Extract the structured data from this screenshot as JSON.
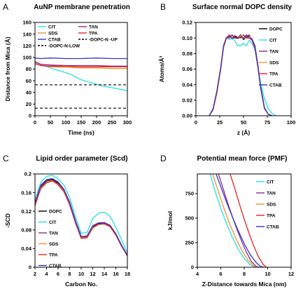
{
  "chart_data": [
    {
      "type": "line",
      "panel": "A",
      "title": "AuNP membrane penetration",
      "xlabel": "Time (ns)",
      "ylabel": "Distance from Mica (Å)",
      "xlim": [
        0,
        300
      ],
      "ylim": [
        0,
        160
      ],
      "xticks": [
        "0",
        "50",
        "100",
        "150",
        "200",
        "250",
        "300"
      ],
      "yticks": [
        "0",
        "20",
        "40",
        "60",
        "80",
        "100",
        "120",
        "140",
        "160"
      ],
      "grid": false,
      "legend_placement": "top",
      "series": [
        {
          "name": "CIT",
          "color": "#22e0e6",
          "x": [
            0,
            10,
            25,
            40,
            60,
            80,
            100,
            120,
            140,
            160,
            180,
            200,
            220,
            240,
            260,
            280,
            300
          ],
          "y": [
            92,
            88,
            86,
            84,
            80,
            77,
            74,
            70,
            64,
            60,
            57,
            54,
            51,
            49,
            47,
            45,
            43
          ]
        },
        {
          "name": "SDS",
          "color": "#f0922f",
          "x": [
            0,
            20,
            50,
            100,
            150,
            200,
            250,
            300
          ],
          "y": [
            91,
            86,
            84,
            83,
            82,
            82,
            81,
            81
          ]
        },
        {
          "name": "CTAB",
          "color": "#3437c4",
          "x": [
            0,
            20,
            50,
            100,
            150,
            200,
            250,
            300
          ],
          "y": [
            99,
            98,
            99,
            98,
            98,
            99,
            98,
            98
          ]
        },
        {
          "name": "TAN",
          "color": "#8e2a8f",
          "x": [
            0,
            20,
            50,
            100,
            150,
            200,
            250,
            300
          ],
          "y": [
            93,
            88,
            87,
            86,
            86,
            86,
            85,
            85
          ]
        },
        {
          "name": "TPA",
          "color": "#e8231f",
          "x": [
            0,
            20,
            50,
            100,
            150,
            200,
            250,
            300
          ],
          "y": [
            89,
            86,
            85,
            85,
            84,
            84,
            84,
            84
          ]
        },
        {
          "name": "-DOPC-N -UP",
          "color": "#000000",
          "dashed": true,
          "x": [
            0,
            300
          ],
          "y": [
            53,
            53
          ]
        },
        {
          "name": "-DOPC-N-LOW",
          "color": "#000000",
          "dashed": true,
          "x": [
            0,
            300
          ],
          "y": [
            13,
            13
          ]
        }
      ]
    },
    {
      "type": "line",
      "panel": "B",
      "title": "Surface normal DOPC density",
      "xlabel": "z (Å)",
      "ylabel": "Atoms/Å³",
      "xlim": [
        0,
        100
      ],
      "ylim": [
        0,
        0.12
      ],
      "xticks": [
        "0",
        "25",
        "50",
        "75",
        "100"
      ],
      "yticks": [
        "0.00",
        "0.02",
        "0.04",
        "0.06",
        "0.08",
        "0.10",
        "0.12"
      ],
      "grid": false,
      "legend_placement": "right",
      "series": [
        {
          "name": "DOPC",
          "color": "#000000",
          "x": [
            14,
            18,
            22,
            26,
            29,
            32,
            35,
            38,
            41,
            44,
            47,
            50,
            53,
            56,
            59,
            62,
            65,
            68,
            72,
            76,
            80
          ],
          "y": [
            0.0,
            0.008,
            0.03,
            0.06,
            0.088,
            0.1,
            0.103,
            0.099,
            0.102,
            0.1,
            0.104,
            0.098,
            0.101,
            0.103,
            0.098,
            0.09,
            0.066,
            0.038,
            0.01,
            0.002,
            0.0
          ]
        },
        {
          "name": "CIT",
          "color": "#22e0e6",
          "x": [
            14,
            18,
            22,
            26,
            29,
            32,
            35,
            38,
            41,
            44,
            47,
            50,
            53,
            56,
            59,
            62,
            65,
            68,
            72,
            76,
            80,
            84
          ],
          "y": [
            0.0,
            0.008,
            0.03,
            0.06,
            0.088,
            0.1,
            0.098,
            0.1,
            0.096,
            0.09,
            0.09,
            0.093,
            0.09,
            0.097,
            0.093,
            0.085,
            0.064,
            0.042,
            0.022,
            0.009,
            0.003,
            0.0
          ]
        },
        {
          "name": "TAN",
          "color": "#8e2a8f",
          "x": [
            14,
            18,
            22,
            26,
            29,
            32,
            35,
            38,
            41,
            44,
            47,
            50,
            53,
            56,
            59,
            62,
            65,
            68,
            72,
            76,
            80
          ],
          "y": [
            0.0,
            0.009,
            0.031,
            0.062,
            0.09,
            0.1,
            0.102,
            0.1,
            0.1,
            0.101,
            0.102,
            0.099,
            0.102,
            0.104,
            0.097,
            0.088,
            0.063,
            0.035,
            0.009,
            0.002,
            0.0
          ]
        },
        {
          "name": "SDS",
          "color": "#f0922f",
          "x": [
            14,
            18,
            22,
            26,
            29,
            32,
            35,
            38,
            41,
            44,
            47,
            50,
            53,
            56,
            59,
            62,
            65,
            68,
            72,
            76,
            80
          ],
          "y": [
            0.0,
            0.008,
            0.029,
            0.059,
            0.087,
            0.099,
            0.101,
            0.103,
            0.1,
            0.099,
            0.103,
            0.1,
            0.1,
            0.102,
            0.098,
            0.089,
            0.065,
            0.036,
            0.01,
            0.002,
            0.0
          ]
        },
        {
          "name": "TPA",
          "color": "#e8231f",
          "x": [
            14,
            18,
            22,
            26,
            29,
            32,
            35,
            38,
            41,
            44,
            47,
            50,
            53,
            56,
            59,
            62,
            65,
            68,
            72,
            76,
            80
          ],
          "y": [
            0.0,
            0.008,
            0.03,
            0.061,
            0.089,
            0.1,
            0.104,
            0.1,
            0.103,
            0.101,
            0.1,
            0.104,
            0.1,
            0.1,
            0.097,
            0.087,
            0.064,
            0.036,
            0.01,
            0.002,
            0.0
          ]
        },
        {
          "name": "CTAB",
          "color": "#3437c4",
          "x": [
            14,
            18,
            22,
            26,
            29,
            32,
            35,
            38,
            41,
            44,
            47,
            50,
            53,
            56,
            59,
            62,
            65,
            68,
            72,
            76,
            80
          ],
          "y": [
            0.0,
            0.009,
            0.032,
            0.062,
            0.09,
            0.101,
            0.1,
            0.104,
            0.1,
            0.1,
            0.101,
            0.1,
            0.104,
            0.1,
            0.099,
            0.09,
            0.065,
            0.036,
            0.01,
            0.002,
            0.0
          ]
        }
      ]
    },
    {
      "type": "line",
      "panel": "C",
      "title": "Lipid order parameter (Scd)",
      "xlabel": "Carbon No.",
      "ylabel": "-SCD",
      "xlim": [
        2,
        18
      ],
      "ylim": [
        0,
        0.2
      ],
      "xticks": [
        "2",
        "4",
        "6",
        "8",
        "10",
        "12",
        "14",
        "16",
        "18"
      ],
      "yticks": [
        "0",
        "0.04",
        "0.08",
        "0.12",
        "0.16",
        "0.2"
      ],
      "grid": false,
      "legend_placement": "bottom-left",
      "series": [
        {
          "name": "DOPC",
          "color": "#000000",
          "x": [
            2,
            3,
            4,
            5,
            6,
            7,
            8,
            9,
            10,
            11,
            12,
            13,
            14,
            15,
            16,
            17,
            18
          ],
          "y": [
            0.135,
            0.172,
            0.185,
            0.188,
            0.18,
            0.165,
            0.138,
            0.098,
            0.064,
            0.065,
            0.086,
            0.093,
            0.094,
            0.088,
            0.07,
            0.045,
            0.025
          ]
        },
        {
          "name": "CIT",
          "color": "#22e0e6",
          "x": [
            2,
            3,
            4,
            5,
            6,
            7,
            8,
            9,
            10,
            11,
            12,
            13,
            14,
            15,
            16,
            17,
            18
          ],
          "y": [
            0.145,
            0.182,
            0.195,
            0.197,
            0.19,
            0.176,
            0.15,
            0.108,
            0.073,
            0.074,
            0.104,
            0.116,
            0.118,
            0.109,
            0.086,
            0.058,
            0.031
          ]
        },
        {
          "name": "TAN",
          "color": "#8e2a8f",
          "x": [
            2,
            3,
            4,
            5,
            6,
            7,
            8,
            9,
            10,
            11,
            12,
            13,
            14,
            15,
            16,
            17,
            18
          ],
          "y": [
            0.136,
            0.174,
            0.186,
            0.19,
            0.182,
            0.166,
            0.138,
            0.098,
            0.065,
            0.066,
            0.088,
            0.095,
            0.095,
            0.089,
            0.071,
            0.047,
            0.025
          ]
        },
        {
          "name": "SDS",
          "color": "#f0922f",
          "x": [
            2,
            3,
            4,
            5,
            6,
            7,
            8,
            9,
            10,
            11,
            12,
            13,
            14,
            15,
            16,
            17,
            18
          ],
          "y": [
            0.133,
            0.17,
            0.182,
            0.186,
            0.178,
            0.163,
            0.135,
            0.096,
            0.063,
            0.064,
            0.085,
            0.092,
            0.093,
            0.087,
            0.069,
            0.045,
            0.024
          ]
        },
        {
          "name": "TPA",
          "color": "#e8231f",
          "x": [
            2,
            3,
            4,
            5,
            6,
            7,
            8,
            9,
            10,
            11,
            12,
            13,
            14,
            15,
            16,
            17,
            18
          ],
          "y": [
            0.132,
            0.169,
            0.181,
            0.185,
            0.177,
            0.162,
            0.134,
            0.095,
            0.062,
            0.063,
            0.084,
            0.092,
            0.093,
            0.087,
            0.069,
            0.045,
            0.024
          ]
        },
        {
          "name": "CTAB",
          "color": "#3437c4",
          "x": [
            2,
            3,
            4,
            5,
            6,
            7,
            8,
            9,
            10,
            11,
            12,
            13,
            14,
            15,
            16,
            17,
            18
          ],
          "y": [
            0.138,
            0.176,
            0.188,
            0.19,
            0.183,
            0.167,
            0.14,
            0.1,
            0.066,
            0.067,
            0.089,
            0.095,
            0.096,
            0.09,
            0.072,
            0.047,
            0.026
          ]
        }
      ]
    },
    {
      "type": "line",
      "panel": "D",
      "title": "Potential mean force (PMF)",
      "xlabel": "Z-Distance towards Mica (nm)",
      "ylabel": "kJ/mol",
      "xlim": [
        4,
        12
      ],
      "ylim": [
        0,
        950
      ],
      "xticks": [
        "4",
        "6",
        "8",
        "10",
        "12"
      ],
      "yticks": [
        "0",
        "250",
        "500",
        "750"
      ],
      "grid": false,
      "legend_placement": "right",
      "series": [
        {
          "name": "CIT",
          "color": "#22e0e6",
          "x": [
            5.1,
            5.5,
            6.0,
            6.5,
            7.0,
            7.5,
            8.0,
            8.5,
            9.0
          ],
          "y": [
            950,
            780,
            600,
            440,
            300,
            180,
            90,
            25,
            0
          ]
        },
        {
          "name": "TAN",
          "color": "#8e2a8f",
          "x": [
            5.8,
            6.2,
            6.6,
            7.0,
            7.4,
            7.8,
            8.2,
            8.6,
            9.0,
            9.3
          ],
          "y": [
            950,
            800,
            650,
            510,
            380,
            260,
            150,
            60,
            10,
            0
          ]
        },
        {
          "name": "SDS",
          "color": "#f0922f",
          "x": [
            5.3,
            5.8,
            6.3,
            6.8,
            7.3,
            7.8,
            8.3,
            8.8,
            9.1
          ],
          "y": [
            950,
            770,
            590,
            430,
            290,
            170,
            75,
            15,
            0
          ]
        },
        {
          "name": "TPA",
          "color": "#e8231f",
          "x": [
            6.8,
            7.2,
            7.6,
            8.0,
            8.4,
            8.8,
            9.2,
            9.6,
            9.9
          ],
          "y": [
            950,
            800,
            640,
            490,
            350,
            220,
            110,
            30,
            0
          ]
        },
        {
          "name": "CTAB",
          "color": "#3437c4",
          "x": [
            5.6,
            6.0,
            6.5,
            7.0,
            7.5,
            8.0,
            8.5,
            9.0,
            9.4,
            9.7
          ],
          "y": [
            950,
            820,
            660,
            510,
            370,
            240,
            130,
            50,
            8,
            0
          ]
        }
      ]
    }
  ]
}
